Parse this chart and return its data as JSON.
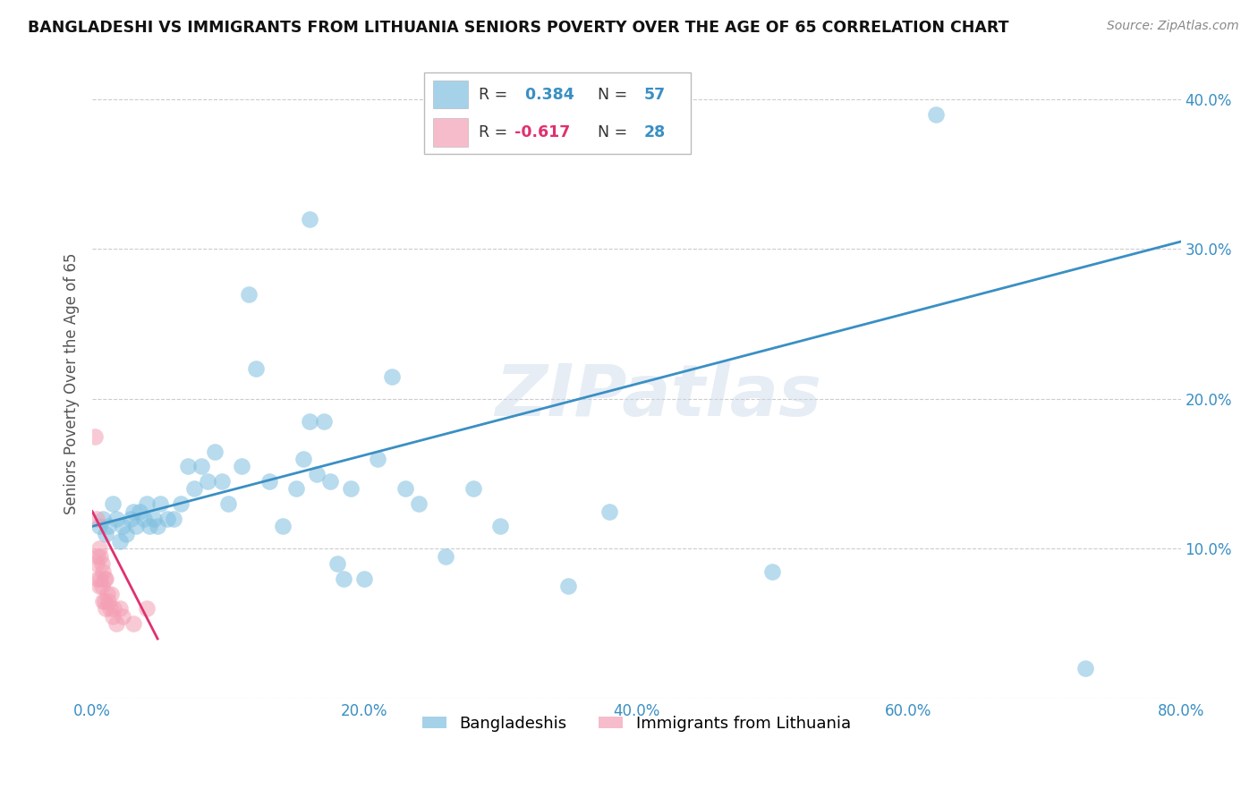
{
  "title": "BANGLADESHI VS IMMIGRANTS FROM LITHUANIA SENIORS POVERTY OVER THE AGE OF 65 CORRELATION CHART",
  "source": "Source: ZipAtlas.com",
  "ylabel": "Seniors Poverty Over the Age of 65",
  "xlim": [
    0,
    0.8
  ],
  "ylim": [
    0,
    0.42
  ],
  "yticks": [
    0.0,
    0.1,
    0.2,
    0.3,
    0.4
  ],
  "xticks": [
    0.0,
    0.2,
    0.4,
    0.6,
    0.8
  ],
  "xtick_labels": [
    "0.0%",
    "20.0%",
    "40.0%",
    "60.0%",
    "80.0%"
  ],
  "ytick_labels": [
    "",
    "10.0%",
    "20.0%",
    "30.0%",
    "40.0%"
  ],
  "blue_R": 0.384,
  "blue_N": 57,
  "pink_R": -0.617,
  "pink_N": 28,
  "blue_color": "#7fbfdf",
  "pink_color": "#f4a0b5",
  "line_blue": "#3a8fc4",
  "line_pink": "#e03070",
  "watermark": "ZIPatlas",
  "blue_scatter_x": [
    0.005,
    0.008,
    0.01,
    0.012,
    0.015,
    0.018,
    0.02,
    0.022,
    0.025,
    0.028,
    0.03,
    0.032,
    0.035,
    0.038,
    0.04,
    0.042,
    0.045,
    0.048,
    0.05,
    0.055,
    0.06,
    0.065,
    0.07,
    0.075,
    0.08,
    0.085,
    0.09,
    0.095,
    0.1,
    0.11,
    0.115,
    0.12,
    0.13,
    0.14,
    0.15,
    0.155,
    0.16,
    0.165,
    0.17,
    0.175,
    0.18,
    0.185,
    0.19,
    0.2,
    0.21,
    0.22,
    0.23,
    0.24,
    0.26,
    0.28,
    0.3,
    0.35,
    0.38,
    0.5,
    0.62,
    0.73,
    0.16
  ],
  "blue_scatter_y": [
    0.115,
    0.12,
    0.11,
    0.115,
    0.13,
    0.12,
    0.105,
    0.115,
    0.11,
    0.12,
    0.125,
    0.115,
    0.125,
    0.12,
    0.13,
    0.115,
    0.12,
    0.115,
    0.13,
    0.12,
    0.12,
    0.13,
    0.155,
    0.14,
    0.155,
    0.145,
    0.165,
    0.145,
    0.13,
    0.155,
    0.27,
    0.22,
    0.145,
    0.115,
    0.14,
    0.16,
    0.185,
    0.15,
    0.185,
    0.145,
    0.09,
    0.08,
    0.14,
    0.08,
    0.16,
    0.215,
    0.14,
    0.13,
    0.095,
    0.14,
    0.115,
    0.075,
    0.125,
    0.085,
    0.39,
    0.02,
    0.32
  ],
  "pink_scatter_x": [
    0.002,
    0.003,
    0.003,
    0.004,
    0.004,
    0.005,
    0.005,
    0.006,
    0.006,
    0.007,
    0.007,
    0.008,
    0.008,
    0.009,
    0.009,
    0.01,
    0.01,
    0.011,
    0.012,
    0.013,
    0.014,
    0.015,
    0.016,
    0.018,
    0.02,
    0.022,
    0.03,
    0.04
  ],
  "pink_scatter_y": [
    0.175,
    0.12,
    0.09,
    0.095,
    0.08,
    0.1,
    0.075,
    0.095,
    0.08,
    0.09,
    0.075,
    0.085,
    0.065,
    0.08,
    0.065,
    0.08,
    0.06,
    0.07,
    0.065,
    0.06,
    0.07,
    0.055,
    0.06,
    0.05,
    0.06,
    0.055,
    0.05,
    0.06
  ],
  "blue_line_x": [
    0.0,
    0.8
  ],
  "blue_line_y": [
    0.115,
    0.305
  ],
  "pink_line_x": [
    0.0,
    0.048
  ],
  "pink_line_y": [
    0.125,
    0.04
  ]
}
